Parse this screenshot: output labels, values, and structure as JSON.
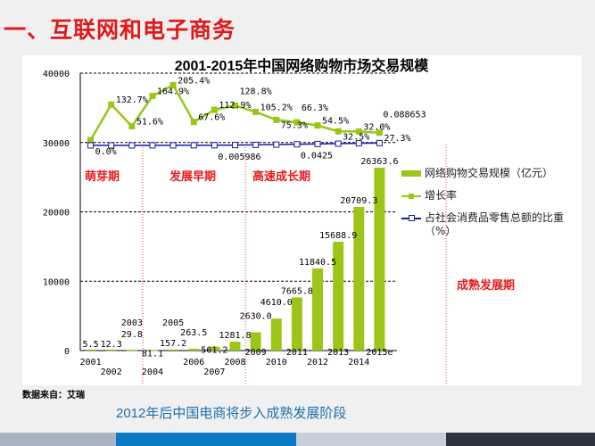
{
  "slide": {
    "title": "一、互联网和电子商务",
    "source": "数据来自：艾瑞",
    "caption": "2012年后中国电商将步入成熟发展阶段",
    "footer_colors": [
      "#a9b3c2",
      "#0a78c2",
      "#c7cfd9",
      "#2b333f"
    ]
  },
  "chart_data": {
    "type": "bar",
    "title": "2001-2015年中国网络购物市场交易规模",
    "categories": [
      "2001",
      "2002",
      "2003",
      "2004",
      "2005",
      "2006",
      "2007",
      "2008",
      "2009",
      "2010",
      "2011",
      "2012",
      "2013",
      "2014",
      "2015e"
    ],
    "ylim": [
      0,
      40000
    ],
    "yticks": [
      "0",
      "10000",
      "20000",
      "30000",
      "40000"
    ],
    "grid": true,
    "legend_position": "right",
    "series": [
      {
        "name": "网络购物交易规模（亿元）",
        "type": "bar",
        "color": "#9bc617",
        "values": [
          5.5,
          12.3,
          29.8,
          81.1,
          157.2,
          263.5,
          561.2,
          1281.8,
          2630.0,
          4610.0,
          7665.8,
          11840.5,
          15688.9,
          20709.3,
          26363.6
        ],
        "labels": [
          "5.5",
          "12.3",
          "29.8",
          "81.1",
          "157.2",
          "263.5",
          "561.2",
          "1281.8",
          "2630.0",
          "4610.0",
          "7665.8",
          "11840.5",
          "15688.9",
          "20709.3",
          "26363.6"
        ]
      },
      {
        "name": "增长率",
        "type": "line",
        "color": "#9bc617",
        "values": [
          0.0,
          132.7,
          51.6,
          164.9,
          205.4,
          67.6,
          112.9,
          128.8,
          105.2,
          75.3,
          66.3,
          54.5,
          32.5,
          32.0,
          27.3
        ],
        "labels": [
          "0.0%",
          "132.7%",
          "51.6%",
          "164.9%",
          "205.4%",
          "67.6%",
          "112.9%",
          "128.8%",
          "105.2%",
          "75.3%",
          "66.3%",
          "54.5%",
          "32.5%",
          "32.0%",
          "27.3%"
        ]
      },
      {
        "name": "占社会消费品零售总额的比重（%）",
        "type": "line",
        "color": "#1a1aa8",
        "values": [
          0.0001,
          0.0003,
          0.0006,
          0.0015,
          0.0024,
          0.0034,
          0.005986,
          0.0118,
          0.02,
          0.0294,
          0.0425,
          0.0554,
          0.065,
          0.0785,
          0.088653
        ],
        "labels": [
          "",
          "",
          "",
          "",
          "",
          "",
          "0.005986",
          "",
          "",
          "",
          "0.0425",
          "",
          "",
          "",
          "0.088653"
        ]
      }
    ],
    "stages": [
      "萌芽期",
      "发展早期",
      "高速成长期",
      "成熟发展期"
    ]
  }
}
